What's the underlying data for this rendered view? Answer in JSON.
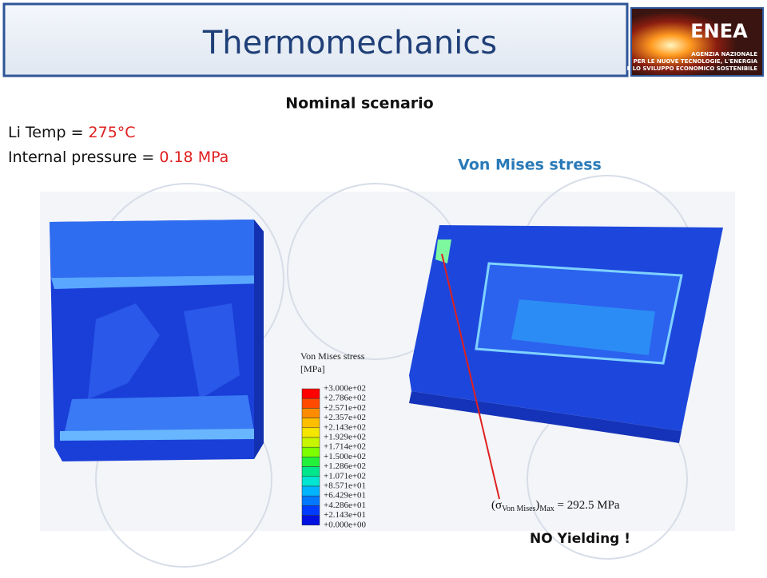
{
  "header": {
    "title": "Thermomechanics",
    "logo": {
      "name": "ENEA",
      "lines": [
        "AGENZIA NAZIONALE",
        "PER LE NUOVE TECNOLOGIE, L'ENERGIA",
        "E LO SVILUPPO ECONOMICO SOSTENIBILE"
      ]
    }
  },
  "scenario": "Nominal scenario",
  "parameters": [
    {
      "label": "Li Temp = ",
      "value": "275°C"
    },
    {
      "label": "Internal pressure  = ",
      "value": "0.18 MPa"
    }
  ],
  "result_title": "Von Mises stress",
  "legend": {
    "title": "Von Mises stress",
    "unit": "[MPa]",
    "levels": [
      "+3.000e+02",
      "+2.786e+02",
      "+2.571e+02",
      "+2.357e+02",
      "+2.143e+02",
      "+1.929e+02",
      "+1.714e+02",
      "+1.500e+02",
      "+1.286e+02",
      "+1.071e+02",
      "+8.571e+01",
      "+6.429e+01",
      "+4.286e+01",
      "+2.143e+01",
      "+0.000e+00"
    ]
  },
  "annotation": {
    "prefix": "(σ",
    "subscript": "Von Mises",
    "suffix": ")",
    "subscript2": "Max",
    "value": " = 292.5 MPa"
  },
  "conclusion": "NO Yielding !"
}
